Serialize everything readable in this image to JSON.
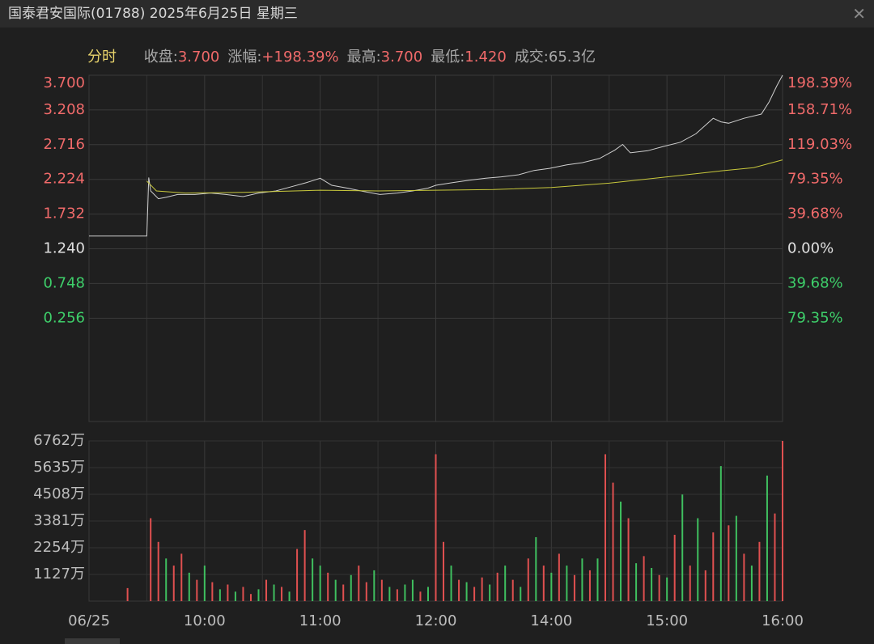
{
  "header": {
    "title": "国泰君安国际(01788) 2025年6月25日 星期三"
  },
  "stats": {
    "mode": "分时",
    "items": [
      {
        "label": "收盘:",
        "value": "3.700",
        "color": "#f06a6a"
      },
      {
        "label": "涨幅:",
        "value": "+198.39%",
        "color": "#f06a6a"
      },
      {
        "label": "最高:",
        "value": "3.700",
        "color": "#f06a6a"
      },
      {
        "label": "最低:",
        "value": "1.420",
        "color": "#f06a6a"
      },
      {
        "label": "成交:",
        "value": "65.3亿",
        "color": "#a8a8a8"
      }
    ]
  },
  "chart_data": [
    {
      "type": "line",
      "grid": true,
      "xlim": [
        0,
        360
      ],
      "xticks": [
        {
          "value": 0,
          "label": "06/25"
        },
        {
          "value": 60,
          "label": "10:00"
        },
        {
          "value": 120,
          "label": "11:00"
        },
        {
          "value": 180,
          "label": "12:00"
        },
        {
          "value": 240,
          "label": "14:00"
        },
        {
          "value": 300,
          "label": "15:00"
        },
        {
          "value": 360,
          "label": "16:00"
        }
      ],
      "ylim": [
        -1.208,
        3.7
      ],
      "yticks": [
        {
          "value": 3.7,
          "label": "3.700"
        },
        {
          "value": 3.208,
          "label": "3.208"
        },
        {
          "value": 2.716,
          "label": "2.716"
        },
        {
          "value": 2.224,
          "label": "2.224"
        },
        {
          "value": 1.732,
          "label": "1.732"
        },
        {
          "value": 1.24,
          "label": "1.240"
        },
        {
          "value": 0.748,
          "label": "0.748"
        },
        {
          "value": 0.256,
          "label": "0.256"
        }
      ],
      "y2lim": [
        -197.42,
        198.39
      ],
      "y2ticks": [
        {
          "value": 198.39,
          "label": "198.39%"
        },
        {
          "value": 158.71,
          "label": "158.71%"
        },
        {
          "value": 119.03,
          "label": "119.03%"
        },
        {
          "value": 79.35,
          "label": "79.35%"
        },
        {
          "value": 39.68,
          "label": "39.68%"
        },
        {
          "value": 0,
          "label": "0.00%"
        },
        {
          "value": -39.68,
          "label": "39.68%"
        },
        {
          "value": -79.35,
          "label": "79.35%"
        }
      ],
      "up_color": "#f06a6a",
      "flat_color": "#e0e0e0",
      "down_color": "#3ecf6a",
      "series": [
        {
          "color": "#cfcfcf",
          "x": [
            0,
            30,
            31,
            32,
            36,
            40,
            46,
            55,
            63,
            71,
            80,
            88,
            97,
            105,
            113,
            120,
            126,
            134,
            143,
            151,
            160,
            168,
            176,
            180,
            189,
            197,
            206,
            214,
            223,
            231,
            239,
            248,
            256,
            265,
            273,
            277,
            281,
            290,
            298,
            307,
            315,
            324,
            328,
            332,
            340,
            349,
            353,
            357,
            360
          ],
          "values": [
            1.42,
            1.42,
            2.25,
            2.06,
            1.95,
            1.97,
            2.01,
            2.01,
            2.03,
            2.01,
            1.98,
            2.03,
            2.06,
            2.12,
            2.18,
            2.24,
            2.14,
            2.1,
            2.05,
            2.01,
            2.03,
            2.06,
            2.1,
            2.14,
            2.18,
            2.21,
            2.24,
            2.26,
            2.29,
            2.35,
            2.38,
            2.43,
            2.46,
            2.52,
            2.64,
            2.72,
            2.6,
            2.63,
            2.69,
            2.75,
            2.87,
            3.09,
            3.04,
            3.02,
            3.09,
            3.15,
            3.32,
            3.55,
            3.7
          ]
        },
        {
          "color": "#c8c83c",
          "x": [
            30,
            35,
            50,
            80,
            120,
            150,
            180,
            210,
            240,
            270,
            300,
            330,
            345,
            360
          ],
          "values": [
            2.2,
            2.06,
            2.03,
            2.04,
            2.07,
            2.06,
            2.07,
            2.08,
            2.11,
            2.17,
            2.26,
            2.35,
            2.39,
            2.5
          ]
        }
      ]
    },
    {
      "type": "bar",
      "xlim": [
        0,
        360
      ],
      "ylim": [
        0,
        6762
      ],
      "yticks": [
        {
          "value": 6762,
          "label": "6762万"
        },
        {
          "value": 5635,
          "label": "5635万"
        },
        {
          "value": 4508,
          "label": "4508万"
        },
        {
          "value": 3381,
          "label": "3381万"
        },
        {
          "value": 2254,
          "label": "2254万"
        },
        {
          "value": 1127,
          "label": "1127万"
        }
      ],
      "x": [
        20,
        32,
        36,
        40,
        44,
        48,
        52,
        56,
        60,
        64,
        68,
        72,
        76,
        80,
        84,
        88,
        92,
        96,
        100,
        104,
        108,
        112,
        116,
        120,
        124,
        128,
        132,
        136,
        140,
        144,
        148,
        152,
        156,
        160,
        164,
        168,
        172,
        176,
        180,
        184,
        188,
        192,
        196,
        200,
        204,
        208,
        212,
        216,
        220,
        224,
        228,
        232,
        236,
        240,
        244,
        248,
        252,
        256,
        260,
        264,
        268,
        272,
        276,
        280,
        284,
        288,
        292,
        296,
        300,
        304,
        308,
        312,
        316,
        320,
        324,
        328,
        332,
        336,
        340,
        344,
        348,
        352,
        356,
        360
      ],
      "values": [
        550,
        3500,
        2500,
        1800,
        1500,
        2000,
        1200,
        900,
        1500,
        800,
        500,
        700,
        400,
        600,
        300,
        500,
        900,
        700,
        600,
        400,
        2200,
        3000,
        1800,
        1500,
        1200,
        900,
        700,
        1100,
        1500,
        800,
        1300,
        900,
        600,
        500,
        700,
        900,
        400,
        600,
        6200,
        2500,
        1500,
        900,
        800,
        600,
        1000,
        700,
        1200,
        1500,
        900,
        600,
        1800,
        2700,
        1500,
        1200,
        2000,
        1500,
        1100,
        1800,
        1300,
        1800,
        6200,
        5000,
        4200,
        3500,
        1600,
        1900,
        1400,
        1100,
        1000,
        2800,
        4500,
        1500,
        3500,
        1300,
        2900,
        5700,
        3200,
        3600,
        2000,
        1500,
        2500,
        5300,
        3700,
        6762
      ],
      "colors": [
        "#e05050",
        "#e05050",
        "#e05050",
        "#3fbf5f",
        "#e05050",
        "#e05050",
        "#3fbf5f",
        "#e05050",
        "#3fbf5f",
        "#e05050",
        "#3fbf5f",
        "#e05050",
        "#3fbf5f",
        "#e05050",
        "#e05050",
        "#3fbf5f",
        "#e05050",
        "#3fbf5f",
        "#e05050",
        "#3fbf5f",
        "#e05050",
        "#e05050",
        "#3fbf5f",
        "#3fbf5f",
        "#e05050",
        "#3fbf5f",
        "#e05050",
        "#3fbf5f",
        "#e05050",
        "#e05050",
        "#3fbf5f",
        "#e05050",
        "#3fbf5f",
        "#e05050",
        "#3fbf5f",
        "#3fbf5f",
        "#e05050",
        "#3fbf5f",
        "#e05050",
        "#e05050",
        "#3fbf5f",
        "#e05050",
        "#3fbf5f",
        "#e05050",
        "#e05050",
        "#3fbf5f",
        "#e05050",
        "#3fbf5f",
        "#e05050",
        "#3fbf5f",
        "#e05050",
        "#3fbf5f",
        "#e05050",
        "#3fbf5f",
        "#e05050",
        "#3fbf5f",
        "#e05050",
        "#3fbf5f",
        "#e05050",
        "#3fbf5f",
        "#e05050",
        "#e05050",
        "#3fbf5f",
        "#e05050",
        "#3fbf5f",
        "#e05050",
        "#3fbf5f",
        "#e05050",
        "#3fbf5f",
        "#e05050",
        "#3fbf5f",
        "#e05050",
        "#3fbf5f",
        "#e05050",
        "#e05050",
        "#3fbf5f",
        "#e05050",
        "#3fbf5f",
        "#e05050",
        "#3fbf5f",
        "#e05050",
        "#3fbf5f",
        "#e05050",
        "#e05050"
      ]
    }
  ]
}
